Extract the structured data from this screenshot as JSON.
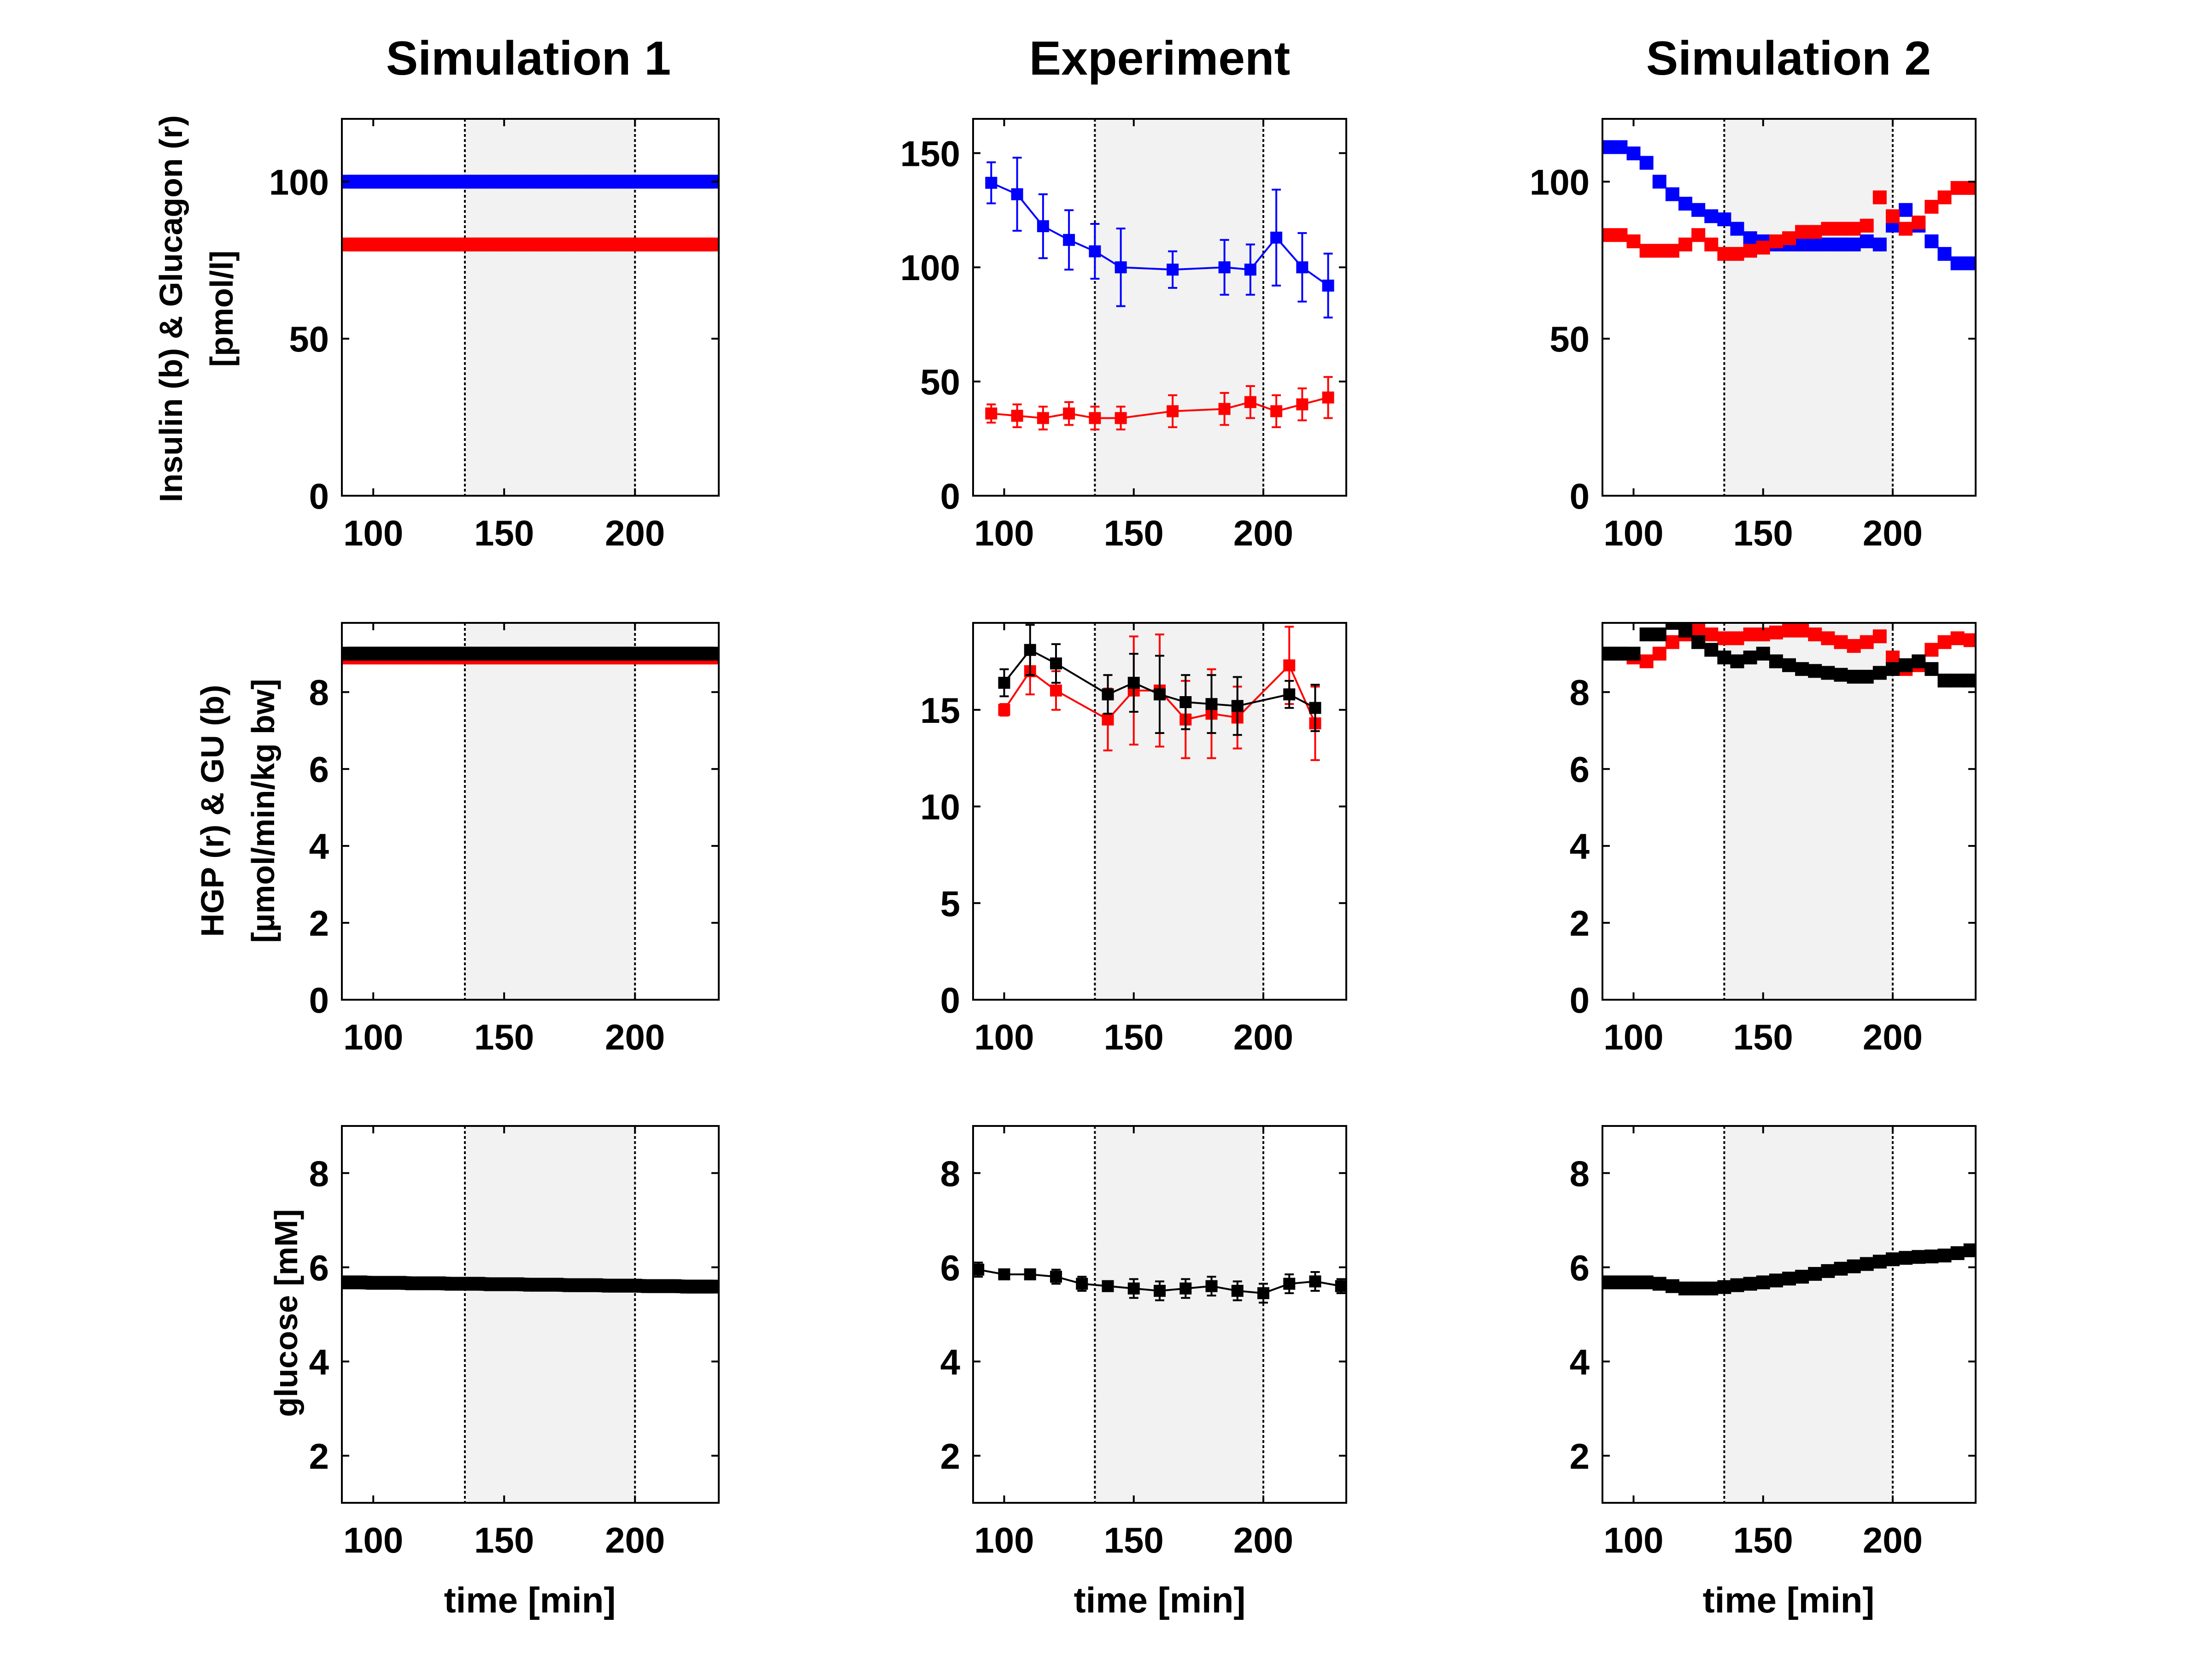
{
  "colors": {
    "blue": "#0000ff",
    "red": "#ff0000",
    "black": "#000000",
    "shade": "#f2f2f2"
  },
  "figure": {
    "column_titles": [
      "Simulation 1",
      "Experiment",
      "Simulation 2"
    ],
    "row_ylabels": [
      [
        "Insulin (b) & Glucagon (r)",
        "[pmol/l]"
      ],
      [
        "HGP (r) & GU (b)",
        "[µmol/min/kg bw]"
      ],
      [
        "glucose [mM]"
      ]
    ],
    "xlabel": "time [min]"
  },
  "chart_data": [
    {
      "id": "sim1-hormones",
      "type": "line",
      "title": "Simulation 1",
      "xlim": [
        88,
        232
      ],
      "ylim": [
        0,
        120
      ],
      "xticks": [
        100,
        150,
        200
      ],
      "yticks": [
        0,
        50,
        100
      ],
      "shade": [
        135,
        200
      ],
      "ylabel": "Insulin (b) & Glucagon (r) [pmol/l]",
      "xlabel": "",
      "series": [
        {
          "color": "blue",
          "style": "thickmarkers",
          "x": [
            90,
            95,
            100,
            105,
            110,
            115,
            120,
            125,
            130,
            135,
            140,
            145,
            150,
            155,
            160,
            165,
            170,
            175,
            180,
            185,
            190,
            195,
            200,
            205,
            210,
            215,
            220,
            225,
            230
          ],
          "y": [
            100,
            100,
            100,
            100,
            100,
            100,
            100,
            100,
            100,
            100,
            100,
            100,
            100,
            100,
            100,
            100,
            100,
            100,
            100,
            100,
            100,
            100,
            100,
            100,
            100,
            100,
            100,
            100,
            100
          ]
        },
        {
          "color": "red",
          "style": "thickmarkers",
          "x": [
            90,
            95,
            100,
            105,
            110,
            115,
            120,
            125,
            130,
            135,
            140,
            145,
            150,
            155,
            160,
            165,
            170,
            175,
            180,
            185,
            190,
            195,
            200,
            205,
            210,
            215,
            220,
            225,
            230
          ],
          "y": [
            80,
            80,
            80,
            80,
            80,
            80,
            80,
            80,
            80,
            80,
            80,
            80,
            80,
            80,
            80,
            80,
            80,
            80,
            80,
            80,
            80,
            80,
            80,
            80,
            80,
            80,
            80,
            80,
            80
          ]
        }
      ]
    },
    {
      "id": "exp-hormones",
      "type": "line",
      "title": "Experiment",
      "xlim": [
        88,
        232
      ],
      "ylim": [
        0,
        165
      ],
      "xticks": [
        100,
        150,
        200
      ],
      "yticks": [
        0,
        50,
        100,
        150
      ],
      "shade": [
        135,
        200
      ],
      "ylabel": "",
      "xlabel": "",
      "series": [
        {
          "color": "blue",
          "style": "errorbar",
          "x": [
            95,
            105,
            115,
            125,
            135,
            145,
            165,
            185,
            195,
            205,
            215,
            225
          ],
          "y": [
            137,
            132,
            118,
            112,
            107,
            100,
            99,
            100,
            99,
            113,
            100,
            92
          ],
          "err": [
            9,
            16,
            14,
            13,
            12,
            17,
            8,
            12,
            11,
            21,
            15,
            14
          ]
        },
        {
          "color": "red",
          "style": "errorbar",
          "x": [
            95,
            105,
            115,
            125,
            135,
            145,
            165,
            185,
            195,
            205,
            215,
            225
          ],
          "y": [
            36,
            35,
            34,
            36,
            34,
            34,
            37,
            38,
            41,
            37,
            40,
            43
          ],
          "err": [
            4,
            5,
            5,
            5,
            5,
            5,
            7,
            7,
            7,
            7,
            7,
            9
          ]
        }
      ]
    },
    {
      "id": "sim2-hormones",
      "type": "line",
      "title": "Simulation 2",
      "xlim": [
        88,
        232
      ],
      "ylim": [
        0,
        120
      ],
      "xticks": [
        100,
        150,
        200
      ],
      "yticks": [
        0,
        50,
        100
      ],
      "shade": [
        135,
        200
      ],
      "ylabel": "",
      "xlabel": "",
      "series": [
        {
          "color": "blue",
          "style": "markers",
          "x": [
            90,
            95,
            100,
            105,
            110,
            115,
            120,
            125,
            130,
            135,
            140,
            145,
            150,
            155,
            160,
            165,
            170,
            175,
            180,
            185,
            190,
            195,
            200,
            205,
            210,
            215,
            220,
            225,
            230
          ],
          "y": [
            111,
            111,
            109,
            106,
            100,
            96,
            93,
            91,
            89,
            88,
            85,
            82,
            81,
            80,
            80,
            80,
            80,
            80,
            80,
            80,
            81,
            80,
            86,
            91,
            86,
            81,
            77,
            74,
            74
          ]
        },
        {
          "color": "red",
          "style": "markers",
          "x": [
            90,
            95,
            100,
            105,
            110,
            115,
            120,
            125,
            130,
            135,
            140,
            145,
            150,
            155,
            160,
            165,
            170,
            175,
            180,
            185,
            190,
            195,
            200,
            205,
            210,
            215,
            220,
            225,
            230
          ],
          "y": [
            83,
            83,
            81,
            78,
            78,
            78,
            80,
            83,
            80,
            77,
            77,
            78,
            79,
            81,
            82,
            84,
            84,
            85,
            85,
            85,
            86,
            95,
            89,
            85,
            87,
            92,
            95,
            98,
            98
          ]
        }
      ]
    },
    {
      "id": "sim1-flux",
      "type": "line",
      "title": "",
      "xlim": [
        88,
        232
      ],
      "ylim": [
        0,
        9.8
      ],
      "xticks": [
        100,
        150,
        200
      ],
      "yticks": [
        0,
        2,
        4,
        6,
        8
      ],
      "shade": [
        135,
        200
      ],
      "ylabel": "HGP (r) & GU (b) [µmol/min/kg bw]",
      "xlabel": "",
      "series": [
        {
          "color": "red",
          "style": "thickmarkers",
          "x": [
            90,
            95,
            100,
            105,
            110,
            115,
            120,
            125,
            130,
            135,
            140,
            145,
            150,
            155,
            160,
            165,
            170,
            175,
            180,
            185,
            190,
            195,
            200,
            205,
            210,
            215,
            220,
            225,
            230
          ],
          "y": [
            8.9,
            8.9,
            8.9,
            8.9,
            8.9,
            8.9,
            8.9,
            8.9,
            8.9,
            8.9,
            8.9,
            8.9,
            8.9,
            8.9,
            8.9,
            8.9,
            8.9,
            8.9,
            8.9,
            8.9,
            8.9,
            8.9,
            8.9,
            8.9,
            8.9,
            8.9,
            8.9,
            8.9,
            8.9
          ]
        },
        {
          "color": "black",
          "style": "thickmarkers",
          "x": [
            90,
            95,
            100,
            105,
            110,
            115,
            120,
            125,
            130,
            135,
            140,
            145,
            150,
            155,
            160,
            165,
            170,
            175,
            180,
            185,
            190,
            195,
            200,
            205,
            210,
            215,
            220,
            225,
            230
          ],
          "y": [
            9.0,
            9.0,
            9.0,
            9.0,
            9.0,
            9.0,
            9.0,
            9.0,
            9.0,
            9.0,
            9.0,
            9.0,
            9.0,
            9.0,
            9.0,
            9.0,
            9.0,
            9.0,
            9.0,
            9.0,
            9.0,
            9.0,
            9.0,
            9.0,
            9.0,
            9.0,
            9.0,
            9.0,
            9.0
          ]
        }
      ]
    },
    {
      "id": "exp-flux",
      "type": "line",
      "title": "",
      "xlim": [
        88,
        232
      ],
      "ylim": [
        0,
        19.5
      ],
      "xticks": [
        100,
        150,
        200
      ],
      "yticks": [
        0,
        5,
        10,
        15
      ],
      "shade": [
        135,
        200
      ],
      "ylabel": "",
      "xlabel": "",
      "series": [
        {
          "color": "red",
          "style": "errorbar",
          "x": [
            100,
            110,
            120,
            140,
            150,
            160,
            170,
            180,
            190,
            210,
            220
          ],
          "y": [
            15.0,
            17.0,
            16.0,
            14.5,
            16.0,
            16.0,
            14.5,
            14.8,
            14.6,
            17.3,
            14.3
          ],
          "err": [
            0.3,
            1.2,
            1.0,
            1.6,
            2.8,
            2.9,
            2.0,
            2.3,
            1.6,
            2.0,
            1.9
          ]
        },
        {
          "color": "black",
          "style": "errorbar",
          "x": [
            100,
            110,
            120,
            140,
            150,
            160,
            170,
            180,
            190,
            210,
            220
          ],
          "y": [
            16.4,
            18.1,
            17.4,
            15.8,
            16.4,
            15.8,
            15.4,
            15.3,
            15.2,
            15.8,
            15.1
          ],
          "err": [
            0.7,
            1.3,
            1.0,
            1.0,
            1.5,
            2.0,
            1.4,
            1.5,
            1.5,
            0.7,
            1.2
          ]
        }
      ]
    },
    {
      "id": "sim2-flux",
      "type": "line",
      "title": "",
      "xlim": [
        88,
        232
      ],
      "ylim": [
        0,
        9.8
      ],
      "xticks": [
        100,
        150,
        200
      ],
      "yticks": [
        0,
        2,
        4,
        6,
        8
      ],
      "shade": [
        135,
        200
      ],
      "ylabel": "",
      "xlabel": "",
      "series": [
        {
          "color": "red",
          "style": "markers",
          "x": [
            90,
            95,
            100,
            105,
            110,
            115,
            120,
            125,
            130,
            135,
            140,
            145,
            150,
            155,
            160,
            165,
            170,
            175,
            180,
            185,
            190,
            195,
            200,
            205,
            210,
            215,
            220,
            225,
            230
          ],
          "y": [
            9.0,
            9.0,
            8.9,
            8.8,
            9.0,
            9.3,
            9.5,
            9.6,
            9.5,
            9.4,
            9.4,
            9.5,
            9.5,
            9.55,
            9.6,
            9.6,
            9.5,
            9.4,
            9.3,
            9.2,
            9.3,
            9.45,
            8.9,
            8.6,
            8.7,
            9.1,
            9.3,
            9.4,
            9.35
          ]
        },
        {
          "color": "black",
          "style": "markers",
          "x": [
            90,
            95,
            100,
            105,
            110,
            115,
            120,
            125,
            130,
            135,
            140,
            145,
            150,
            155,
            160,
            165,
            170,
            175,
            180,
            185,
            190,
            195,
            200,
            205,
            210,
            215,
            220,
            225,
            230
          ],
          "y": [
            9.0,
            9.0,
            9.0,
            9.5,
            9.5,
            9.8,
            9.6,
            9.3,
            9.1,
            8.9,
            8.8,
            8.9,
            9.0,
            8.8,
            8.7,
            8.6,
            8.55,
            8.5,
            8.45,
            8.4,
            8.4,
            8.5,
            8.6,
            8.7,
            8.8,
            8.6,
            8.3,
            8.3,
            8.3
          ]
        }
      ]
    },
    {
      "id": "sim1-glucose",
      "type": "line",
      "title": "",
      "xlim": [
        88,
        232
      ],
      "ylim": [
        1,
        9
      ],
      "xticks": [
        100,
        150,
        200
      ],
      "yticks": [
        2,
        4,
        6,
        8
      ],
      "shade": [
        135,
        200
      ],
      "ylabel": "glucose [mM]",
      "xlabel": "time [min]",
      "series": [
        {
          "color": "black",
          "style": "thickmarkers",
          "x": [
            90,
            95,
            100,
            105,
            110,
            115,
            120,
            125,
            130,
            135,
            140,
            145,
            150,
            155,
            160,
            165,
            170,
            175,
            180,
            185,
            190,
            195,
            200,
            205,
            210,
            215,
            220,
            225,
            230
          ],
          "y": [
            5.68,
            5.68,
            5.67,
            5.67,
            5.67,
            5.66,
            5.66,
            5.66,
            5.65,
            5.65,
            5.65,
            5.64,
            5.64,
            5.64,
            5.63,
            5.63,
            5.63,
            5.62,
            5.62,
            5.62,
            5.61,
            5.61,
            5.61,
            5.6,
            5.6,
            5.6,
            5.59,
            5.59,
            5.59
          ]
        }
      ]
    },
    {
      "id": "exp-glucose",
      "type": "line",
      "title": "",
      "xlim": [
        88,
        232
      ],
      "ylim": [
        1,
        9
      ],
      "xticks": [
        100,
        150,
        200
      ],
      "yticks": [
        2,
        4,
        6,
        8
      ],
      "shade": [
        135,
        200
      ],
      "ylabel": "",
      "xlabel": "time [min]",
      "series": [
        {
          "color": "black",
          "style": "errorbar",
          "x": [
            90,
            100,
            110,
            120,
            130,
            140,
            150,
            160,
            170,
            180,
            190,
            200,
            210,
            220,
            230
          ],
          "y": [
            5.95,
            5.85,
            5.85,
            5.8,
            5.65,
            5.6,
            5.55,
            5.5,
            5.55,
            5.6,
            5.5,
            5.45,
            5.65,
            5.7,
            5.6
          ],
          "err": [
            0.15,
            0.1,
            0.1,
            0.15,
            0.15,
            0.1,
            0.2,
            0.2,
            0.2,
            0.2,
            0.2,
            0.2,
            0.2,
            0.2,
            0.15
          ]
        }
      ]
    },
    {
      "id": "sim2-glucose",
      "type": "line",
      "title": "",
      "xlim": [
        88,
        232
      ],
      "ylim": [
        1,
        9
      ],
      "xticks": [
        100,
        150,
        200
      ],
      "yticks": [
        2,
        4,
        6,
        8
      ],
      "shade": [
        135,
        200
      ],
      "ylabel": "",
      "xlabel": "time [min]",
      "series": [
        {
          "color": "black",
          "style": "markers",
          "x": [
            90,
            95,
            100,
            105,
            110,
            115,
            120,
            125,
            130,
            135,
            140,
            145,
            150,
            155,
            160,
            165,
            170,
            175,
            180,
            185,
            190,
            195,
            200,
            205,
            210,
            215,
            220,
            225,
            230
          ],
          "y": [
            5.68,
            5.68,
            5.68,
            5.68,
            5.65,
            5.6,
            5.55,
            5.55,
            5.55,
            5.58,
            5.62,
            5.65,
            5.68,
            5.72,
            5.76,
            5.8,
            5.86,
            5.92,
            5.97,
            6.02,
            6.07,
            6.12,
            6.17,
            6.2,
            6.22,
            6.23,
            6.25,
            6.3,
            6.36
          ]
        }
      ]
    }
  ]
}
